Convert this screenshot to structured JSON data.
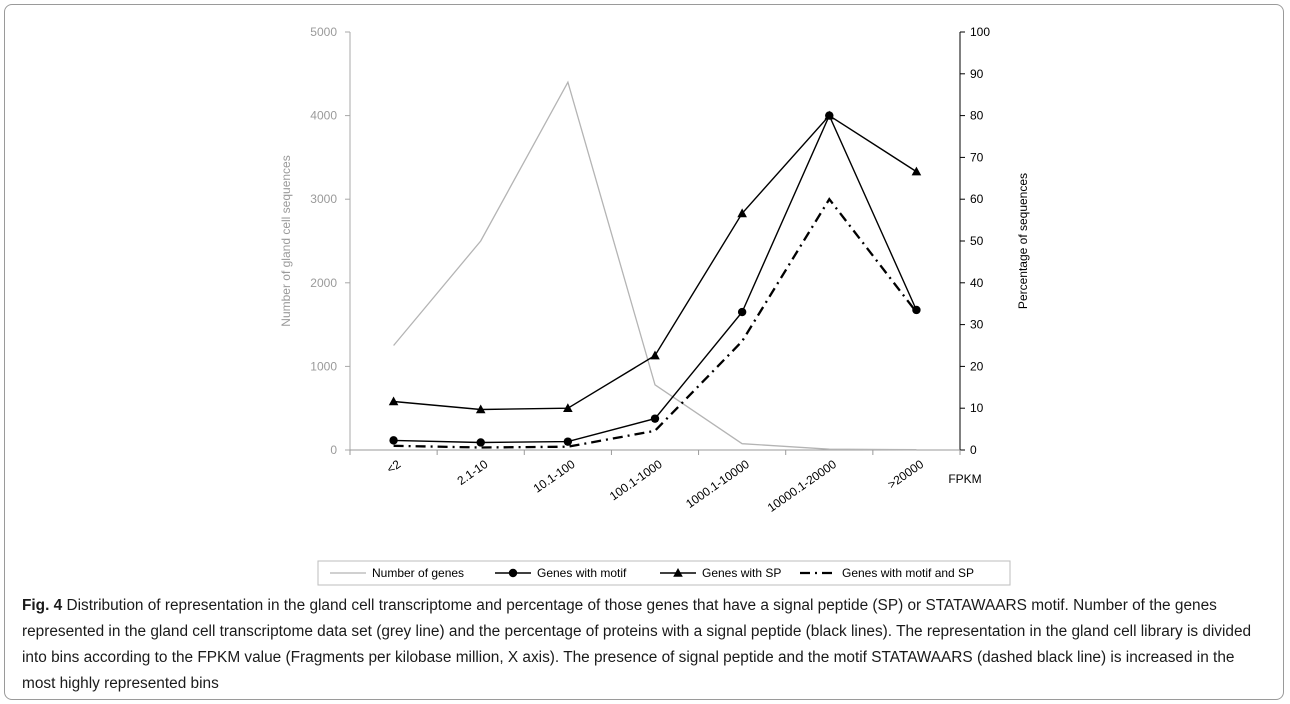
{
  "chart_data": {
    "type": "line",
    "categories": [
      "<2",
      "2.1-10",
      "10.1-100",
      "100.1-1000",
      "1000.1-10000",
      "10000.1-20000",
      ">20000"
    ],
    "x_unit_label": "FPKM",
    "y_left": {
      "label": "Number of gland cell sequences",
      "min": 0,
      "max": 5000,
      "step": 1000,
      "color": "#a8a8a8"
    },
    "y_right": {
      "label": "Percentage of sequences",
      "min": 0,
      "max": 100,
      "step": 10,
      "color": "#000000"
    },
    "series": [
      {
        "name": "Number of genes",
        "axis": "left",
        "values": [
          1250,
          2500,
          4400,
          780,
          75,
          10,
          5
        ],
        "color": "#b4b4b4",
        "marker": "none",
        "dash": "solid"
      },
      {
        "name": "Genes with motif",
        "axis": "right",
        "values": [
          2.3,
          1.8,
          2.0,
          7.5,
          33.0,
          80.0,
          33.5
        ],
        "color": "#000000",
        "marker": "circle",
        "dash": "solid"
      },
      {
        "name": "Genes with SP",
        "axis": "right",
        "values": [
          11.6,
          9.7,
          10.0,
          22.6,
          56.6,
          80.0,
          66.6
        ],
        "color": "#000000",
        "marker": "triangle",
        "dash": "solid"
      },
      {
        "name": "Genes with motif and SP",
        "axis": "right",
        "values": [
          1.0,
          0.6,
          0.8,
          4.6,
          26.0,
          60.0,
          33.0
        ],
        "color": "#000000",
        "marker": "none",
        "dash": "dashdot"
      }
    ],
    "legend_position": "bottom"
  },
  "caption": {
    "label": "Fig. 4",
    "text": " Distribution of representation in the gland cell transcriptome and percentage of those genes that have a signal peptide (SP) or STATAWAARS motif. Number of the genes represented in the gland cell transcriptome data set (grey line) and the percentage of proteins with a signal peptide (black lines). The representation in the gland cell library is divided into bins according to the FPKM value (Fragments per kilobase million, X axis). The presence of signal peptide and the motif STATAWAARS (dashed black line) is increased in the most highly represented bins"
  }
}
